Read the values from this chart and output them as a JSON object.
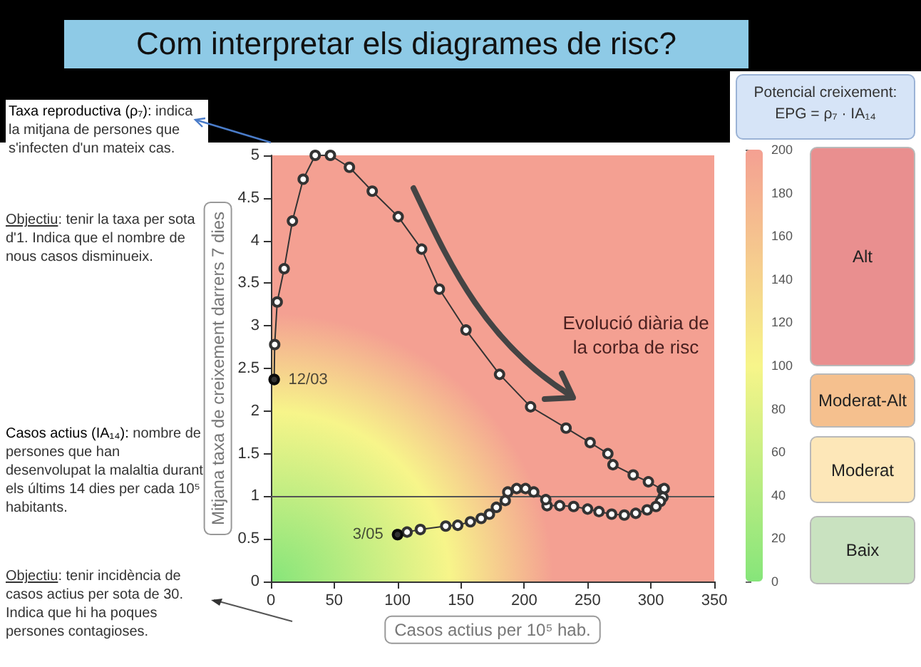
{
  "chart_data": {
    "type": "line",
    "title": "Com interpretar els diagrames de risc?",
    "xlabel": "Casos actius per 10⁵ hab.",
    "ylabel": "Mitjana taxa de creixement darrers 7 dies",
    "clabel": "Potencial creixement: EPG = ρ₇ · IA₁₄",
    "xlim": [
      0,
      350
    ],
    "xticks": [
      0,
      50,
      100,
      150,
      200,
      250,
      300,
      350
    ],
    "ylim": [
      0,
      5
    ],
    "yticks": [
      0,
      0.5,
      1,
      1.5,
      2,
      2.5,
      3,
      3.5,
      4,
      4.5,
      5
    ],
    "clim": [
      0,
      200
    ],
    "cticks": [
      0,
      20,
      40,
      60,
      80,
      100,
      120,
      140,
      160,
      180,
      200
    ],
    "series": [
      {
        "color": "#333333",
        "x": [
          2.6,
          3,
          5,
          10.5,
          17,
          25.5,
          35,
          47,
          62,
          80,
          100.5,
          119,
          133,
          154,
          180.5,
          205,
          233,
          252,
          266,
          270,
          286,
          298,
          309,
          310.5,
          309.5,
          307.5,
          304,
          297,
          288,
          279,
          269,
          259,
          250,
          239,
          228,
          218,
          217,
          207.5,
          201,
          194,
          187,
          185,
          178,
          172.5,
          166,
          157.5,
          147.5,
          138,
          118,
          107.5,
          100
        ],
        "values": [
          2.37,
          2.78,
          3.28,
          3.67,
          4.23,
          4.72,
          5,
          5,
          4.86,
          4.58,
          4.28,
          3.9,
          3.43,
          2.95,
          2.43,
          2.05,
          1.8,
          1.63,
          1.5,
          1.37,
          1.25,
          1.17,
          1.08,
          1.09,
          0.99,
          0.94,
          0.88,
          0.84,
          0.8,
          0.78,
          0.79,
          0.82,
          0.85,
          0.88,
          0.89,
          0.89,
          0.96,
          1.05,
          1.09,
          1.09,
          1.05,
          0.95,
          0.87,
          0.79,
          0.74,
          0.7,
          0.66,
          0.65,
          0.61,
          0.58,
          0.55
        ]
      }
    ],
    "ref_lines": [
      {
        "axis": "y",
        "value": 1,
        "color": "#555555"
      }
    ],
    "marker": "circle",
    "grid": false,
    "annotations": [
      "Taxa reproductiva (ρ₇): indica la mitjana de persones que s'infecten d'un mateix cas.",
      "Objectiu: tenir la taxa per sota d'1. Indica que el nombre de nous casos disminueix.",
      "Casos actius (IA₁₄): nombre de persones que han desenvolupat la malaltia durant els últims 14 dies per cada 10⁵ habitants.",
      "Objectiu: tenir incidència de casos actius per sota de 30. Indica que hi ha poques persones contagioses.",
      "Evolució diària de la corba de risc",
      "Alt",
      "Moderat-Alt",
      "Moderat",
      "Baix",
      {
        "text": "12/03",
        "x": 2.6,
        "y": 2.37
      },
      {
        "text": "3/05",
        "x": 100,
        "y": 0.55
      }
    ]
  }
}
